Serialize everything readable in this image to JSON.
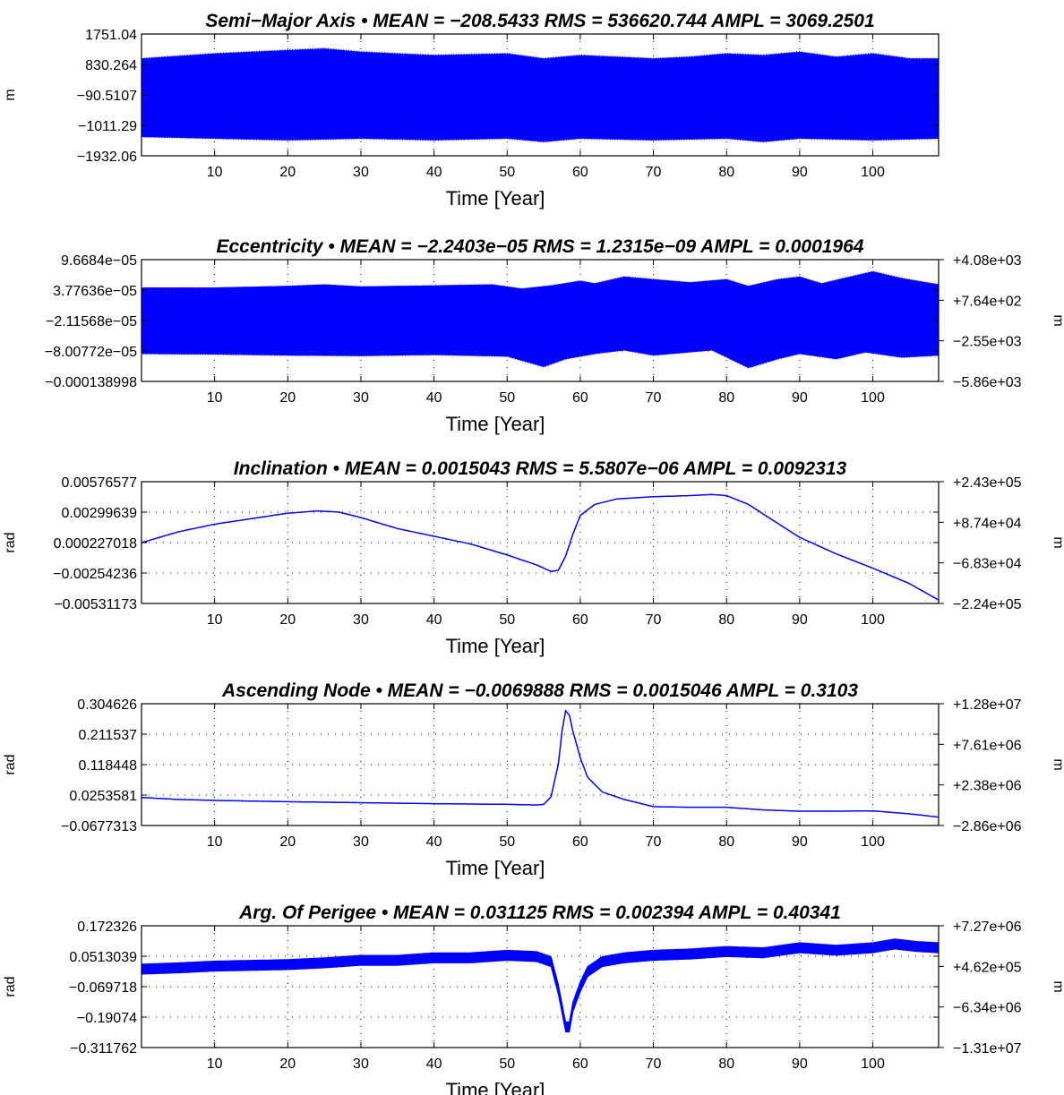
{
  "chart_data": [
    {
      "type": "line",
      "title": "Semi−Major Axis  •  MEAN = −208.5433    RMS = 536620.744    AMPL = 3069.2501",
      "xlabel": "Time  [Year]",
      "ylabel": "m",
      "ylabel_right": "",
      "xlim": [
        0,
        109
      ],
      "ylim": [
        -1932.06,
        1751.04
      ],
      "ylim_right": null,
      "xticks": [
        "10",
        "20",
        "30",
        "40",
        "50",
        "60",
        "70",
        "80",
        "90",
        "100"
      ],
      "yticks": [
        "1751.04",
        "830.264",
        "−90.5107",
        "−1011.29",
        "−1932.06"
      ],
      "yticks_right": [],
      "grid": true,
      "color": "#0000ff",
      "series": [
        {
          "style": "oscillation",
          "center": -150,
          "upper_envelope": [
            [
              0,
              1000
            ],
            [
              10,
              1150
            ],
            [
              20,
              1250
            ],
            [
              25,
              1300
            ],
            [
              30,
              1200
            ],
            [
              40,
              1100
            ],
            [
              50,
              1150
            ],
            [
              55,
              1000
            ],
            [
              60,
              1100
            ],
            [
              65,
              1050
            ],
            [
              70,
              1000
            ],
            [
              75,
              1050
            ],
            [
              80,
              1150
            ],
            [
              85,
              1100
            ],
            [
              90,
              1200
            ],
            [
              95,
              1050
            ],
            [
              100,
              1150
            ],
            [
              105,
              1000
            ],
            [
              109,
              1000
            ]
          ],
          "lower_envelope": [
            [
              0,
              -1350
            ],
            [
              10,
              -1400
            ],
            [
              20,
              -1450
            ],
            [
              30,
              -1400
            ],
            [
              40,
              -1450
            ],
            [
              50,
              -1400
            ],
            [
              55,
              -1500
            ],
            [
              60,
              -1400
            ],
            [
              70,
              -1450
            ],
            [
              80,
              -1400
            ],
            [
              85,
              -1500
            ],
            [
              90,
              -1400
            ],
            [
              100,
              -1450
            ],
            [
              109,
              -1400
            ]
          ]
        }
      ]
    },
    {
      "type": "line",
      "title": "Eccentricity  •  MEAN = −2.2403e−05    RMS = 1.2315e−09    AMPL = 0.0001964",
      "xlabel": "Time  [Year]",
      "ylabel": "",
      "ylabel_right": "m",
      "xlim": [
        0,
        109
      ],
      "ylim": [
        -0.000138998,
        9.6684e-05
      ],
      "ylim_right": [
        -5860,
        4080
      ],
      "xticks": [
        "10",
        "20",
        "30",
        "40",
        "50",
        "60",
        "70",
        "80",
        "90",
        "100"
      ],
      "yticks": [
        "9.6684e−05",
        "3.77636e−05",
        "−2.11568e−05",
        "−8.00772e−05",
        "−0.000138998"
      ],
      "yticks_right": [
        "+4.08e+03",
        "+7.64e+02",
        "−2.55e+03",
        "−5.86e+03"
      ],
      "grid": true,
      "color": "#0000ff",
      "series": [
        {
          "style": "oscillation",
          "center": -2.15e-05,
          "upper_envelope": [
            [
              0,
              4.2e-05
            ],
            [
              10,
              4.2e-05
            ],
            [
              20,
              4.5e-05
            ],
            [
              25,
              4.8e-05
            ],
            [
              30,
              4.4e-05
            ],
            [
              40,
              4.6e-05
            ],
            [
              48,
              4.8e-05
            ],
            [
              52,
              4e-05
            ],
            [
              56,
              4.6e-05
            ],
            [
              60,
              5.5e-05
            ],
            [
              62,
              5e-05
            ],
            [
              66,
              6.3e-05
            ],
            [
              70,
              5.8e-05
            ],
            [
              75,
              5.2e-05
            ],
            [
              80,
              5.8e-05
            ],
            [
              83,
              4.5e-05
            ],
            [
              87,
              5.8e-05
            ],
            [
              90,
              6.3e-05
            ],
            [
              93,
              5e-05
            ],
            [
              96,
              6e-05
            ],
            [
              100,
              7.3e-05
            ],
            [
              104,
              6e-05
            ],
            [
              109,
              4.8e-05
            ]
          ],
          "lower_envelope": [
            [
              0,
              -8.5e-05
            ],
            [
              10,
              -8.6e-05
            ],
            [
              20,
              -8.8e-05
            ],
            [
              30,
              -8.9e-05
            ],
            [
              40,
              -8.7e-05
            ],
            [
              50,
              -9e-05
            ],
            [
              55,
              -0.00011
            ],
            [
              58,
              -9.5e-05
            ],
            [
              62,
              -8.5e-05
            ],
            [
              66,
              -7.8e-05
            ],
            [
              70,
              -8.8e-05
            ],
            [
              78,
              -7.8e-05
            ],
            [
              83,
              -0.000112
            ],
            [
              87,
              -9.5e-05
            ],
            [
              90,
              -8.5e-05
            ],
            [
              95,
              -9.5e-05
            ],
            [
              99,
              -8.2e-05
            ],
            [
              104,
              -9.2e-05
            ],
            [
              109,
              -8.8e-05
            ]
          ]
        }
      ]
    },
    {
      "type": "line",
      "title": "Inclination  •  MEAN = 0.0015043    RMS = 5.5807e−06    AMPL = 0.0092313",
      "xlabel": "Time  [Year]",
      "ylabel": "rad",
      "ylabel_right": "m",
      "xlim": [
        0,
        109
      ],
      "ylim": [
        -0.00531173,
        0.00576577
      ],
      "ylim_right": [
        -224000,
        243000
      ],
      "xticks": [
        "10",
        "20",
        "30",
        "40",
        "50",
        "60",
        "70",
        "80",
        "90",
        "100"
      ],
      "yticks": [
        "0.00576577",
        "0.00299639",
        "0.000227018",
        "−0.00254236",
        "−0.00531173"
      ],
      "yticks_right": [
        "+2.43e+05",
        "+8.74e+04",
        "−6.83e+04",
        "−2.24e+05"
      ],
      "grid": true,
      "color": "#0000ff",
      "series": [
        {
          "style": "line",
          "points": [
            [
              0,
              0.00022
            ],
            [
              5,
              0.0012
            ],
            [
              10,
              0.0019
            ],
            [
              15,
              0.0024
            ],
            [
              20,
              0.0029
            ],
            [
              24,
              0.0031
            ],
            [
              27,
              0.003
            ],
            [
              30,
              0.0025
            ],
            [
              35,
              0.0015
            ],
            [
              40,
              0.0008
            ],
            [
              45,
              0.0001
            ],
            [
              50,
              -0.0009
            ],
            [
              54,
              -0.0018
            ],
            [
              56,
              -0.0024
            ],
            [
              57,
              -0.0023
            ],
            [
              58,
              -0.001
            ],
            [
              59,
              0.001
            ],
            [
              60,
              0.0027
            ],
            [
              62,
              0.0037
            ],
            [
              65,
              0.0042
            ],
            [
              70,
              0.0044
            ],
            [
              75,
              0.0045
            ],
            [
              78,
              0.0046
            ],
            [
              80,
              0.0045
            ],
            [
              83,
              0.0037
            ],
            [
              86,
              0.0024
            ],
            [
              90,
              0.0007
            ],
            [
              95,
              -0.0008
            ],
            [
              100,
              -0.0021
            ],
            [
              105,
              -0.0035
            ],
            [
              109,
              -0.005
            ]
          ]
        }
      ]
    },
    {
      "type": "line",
      "title": "Ascending Node  •  MEAN = −0.0069888    RMS = 0.0015046    AMPL = 0.3103",
      "xlabel": "Time  [Year]",
      "ylabel": "rad",
      "ylabel_right": "m",
      "xlim": [
        0,
        109
      ],
      "ylim": [
        -0.0677313,
        0.304626
      ],
      "ylim_right": [
        -2860000,
        12800000
      ],
      "xticks": [
        "10",
        "20",
        "30",
        "40",
        "50",
        "60",
        "70",
        "80",
        "90",
        "100"
      ],
      "yticks": [
        "0.304626",
        "0.211537",
        "0.118448",
        "0.0253581",
        "−0.0677313"
      ],
      "yticks_right": [
        "+1.28e+07",
        "+7.61e+06",
        "+2.38e+06",
        "−2.86e+06"
      ],
      "grid": true,
      "color": "#0000ff",
      "series": [
        {
          "style": "line",
          "points": [
            [
              0,
              0.018
            ],
            [
              5,
              0.012
            ],
            [
              10,
              0.009
            ],
            [
              20,
              0.005
            ],
            [
              30,
              0.002
            ],
            [
              40,
              -0.001
            ],
            [
              50,
              -0.003
            ],
            [
              54,
              -0.005
            ],
            [
              55,
              -0.003
            ],
            [
              56,
              0.02
            ],
            [
              57,
              0.12
            ],
            [
              57.5,
              0.22
            ],
            [
              58,
              0.283
            ],
            [
              58.5,
              0.27
            ],
            [
              59,
              0.22
            ],
            [
              60,
              0.14
            ],
            [
              61,
              0.08
            ],
            [
              63,
              0.035
            ],
            [
              66,
              0.012
            ],
            [
              70,
              -0.01
            ],
            [
              75,
              -0.012
            ],
            [
              80,
              -0.012
            ],
            [
              85,
              -0.02
            ],
            [
              90,
              -0.024
            ],
            [
              95,
              -0.024
            ],
            [
              100,
              -0.023
            ],
            [
              105,
              -0.032
            ],
            [
              109,
              -0.042
            ]
          ]
        }
      ]
    },
    {
      "type": "line",
      "title": "Arg. Of Perigee  •  MEAN = 0.031125    RMS = 0.002394    AMPL = 0.40341",
      "xlabel": "Time  [Year]",
      "ylabel": "rad",
      "ylabel_right": "m",
      "xlim": [
        0,
        109
      ],
      "ylim": [
        -0.311762,
        0.172326
      ],
      "ylim_right": [
        -13100000,
        7270000
      ],
      "xticks": [
        "10",
        "20",
        "30",
        "40",
        "50",
        "60",
        "70",
        "80",
        "90",
        "100"
      ],
      "yticks": [
        "0.172326",
        "0.0513039",
        "−0.069718",
        "−0.19074",
        "−0.311762"
      ],
      "yticks_right": [
        "+7.27e+06",
        "+4.62e+05",
        "−6.34e+06",
        "−1.31e+07"
      ],
      "grid": true,
      "color": "#0000ff",
      "series": [
        {
          "style": "band",
          "halfwidth": 0.02,
          "points": [
            [
              0,
              0.0
            ],
            [
              5,
              0.005
            ],
            [
              10,
              0.012
            ],
            [
              15,
              0.015
            ],
            [
              20,
              0.018
            ],
            [
              25,
              0.025
            ],
            [
              30,
              0.035
            ],
            [
              35,
              0.035
            ],
            [
              40,
              0.045
            ],
            [
              45,
              0.045
            ],
            [
              50,
              0.055
            ],
            [
              54,
              0.05
            ],
            [
              56,
              0.03
            ],
            [
              57,
              -0.08
            ],
            [
              58,
              -0.23
            ],
            [
              58.5,
              -0.23
            ],
            [
              59,
              -0.15
            ],
            [
              60,
              -0.07
            ],
            [
              61,
              -0.01
            ],
            [
              63,
              0.03
            ],
            [
              66,
              0.045
            ],
            [
              70,
              0.055
            ],
            [
              75,
              0.06
            ],
            [
              80,
              0.07
            ],
            [
              85,
              0.065
            ],
            [
              90,
              0.085
            ],
            [
              95,
              0.075
            ],
            [
              100,
              0.085
            ],
            [
              103,
              0.1
            ],
            [
              106,
              0.09
            ],
            [
              109,
              0.085
            ]
          ]
        }
      ]
    }
  ]
}
